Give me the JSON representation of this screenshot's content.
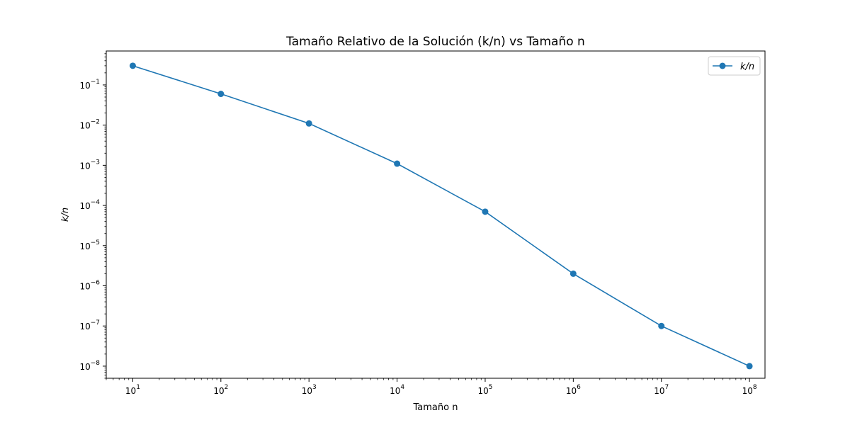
{
  "chart_data": {
    "type": "line",
    "title": "Tamaño Relativo de la Solución (k/n) vs Tamaño n",
    "xlabel": "Tamaño n",
    "ylabel": "k/n",
    "x_scale": "log",
    "y_scale": "log",
    "xlim": [
      5,
      150000000
    ],
    "ylim": [
      5e-09,
      0.7
    ],
    "x_ticks": [
      10,
      100,
      1000,
      10000,
      100000,
      1000000,
      10000000,
      100000000
    ],
    "x_tick_exponents": [
      "1",
      "2",
      "3",
      "4",
      "5",
      "6",
      "7",
      "8"
    ],
    "y_ticks": [
      1e-08,
      1e-07,
      1e-06,
      1e-05,
      0.0001,
      0.001,
      0.01,
      0.1
    ],
    "y_tick_exponents": [
      "−8",
      "−7",
      "−6",
      "−5",
      "−4",
      "−3",
      "−2",
      "−1"
    ],
    "tick_base": "10",
    "grid": false,
    "legend_position": "top-right",
    "series": [
      {
        "name": "k/n",
        "color": "#1f77b4",
        "marker": "circle",
        "x": [
          10,
          100,
          1000,
          10000,
          100000,
          1000000,
          10000000,
          100000000
        ],
        "y": [
          0.3,
          0.06,
          0.011,
          0.0011,
          7e-05,
          2e-06,
          1e-07,
          1e-08
        ]
      }
    ]
  }
}
